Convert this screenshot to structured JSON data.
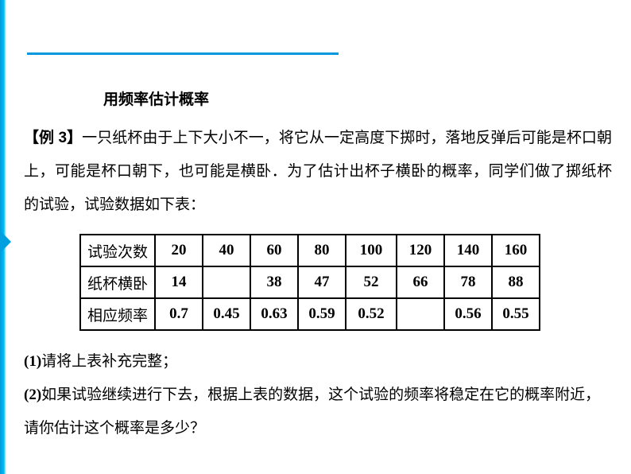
{
  "heading": "用频率估计概率",
  "example_label": "【例 3】",
  "problem_text": "一只纸杯由于上下大小不一，将它从一定高度下掷时，落地反弹后可能是杯口朝上，可能是杯口朝下，也可能是横卧．为了估计出杯子横卧的概率，同学们做了掷纸杯的试验，试验数据如下表：",
  "table": {
    "row1_label": "试验次数",
    "row2_label": "纸杯横卧",
    "row3_label": "相应频率",
    "columns": [
      {
        "trials": "20",
        "lying": "14",
        "freq": "0.7"
      },
      {
        "trials": "40",
        "lying": "",
        "freq": "0.45"
      },
      {
        "trials": "60",
        "lying": "38",
        "freq": "0.63"
      },
      {
        "trials": "80",
        "lying": "47",
        "freq": "0.59"
      },
      {
        "trials": "100",
        "lying": "52",
        "freq": "0.52"
      },
      {
        "trials": "120",
        "lying": "66",
        "freq": ""
      },
      {
        "trials": "140",
        "lying": "78",
        "freq": "0.56"
      },
      {
        "trials": "160",
        "lying": "88",
        "freq": "0.55"
      }
    ]
  },
  "q1_num": "(1)",
  "q1_text": "请将上表补充完整；",
  "q2_num": "(2)",
  "q2_text": "如果试验继续进行下去，根据上表的数据，这个试验的频率将稳定在它的概率附近，请你估计这个概率是多少？",
  "colors": {
    "accent": "#0099dd",
    "text": "#000000",
    "bg": "#ffffff",
    "border": "#000000"
  }
}
